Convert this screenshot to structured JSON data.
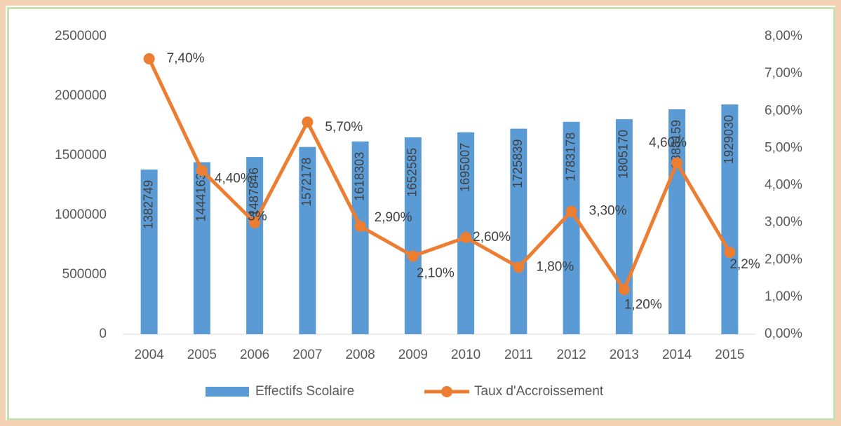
{
  "chart_data": {
    "type": "bar_line",
    "categories": [
      "2004",
      "2005",
      "2006",
      "2007",
      "2008",
      "2009",
      "2010",
      "2011",
      "2012",
      "2013",
      "2014",
      "2015"
    ],
    "series": [
      {
        "name": "Effectifs Scolaire",
        "type": "bar",
        "color": "#5b9bd5",
        "values": [
          1382749,
          1444163,
          1487846,
          1572178,
          1618303,
          1652585,
          1695007,
          1725839,
          1783178,
          1805170,
          1888159,
          1929030
        ]
      },
      {
        "name": "Taux d'Accroissement",
        "type": "line",
        "axis": "y2",
        "color": "#ed7d31",
        "values": [
          7.4,
          4.4,
          3,
          5.7,
          2.9,
          2.1,
          2.6,
          1.8,
          3.3,
          1.2,
          4.6,
          2.2
        ],
        "value_labels": [
          "7,40%",
          "4,40%",
          "3%",
          "5,70%",
          "2,90%",
          "2,10%",
          "2,60%",
          "1,80%",
          "3,30%",
          "1,20%",
          "4,60%",
          "2,2%"
        ]
      }
    ],
    "ylim": [
      0,
      2500000
    ],
    "yticks": [
      0,
      500000,
      1000000,
      1500000,
      2000000,
      2500000
    ],
    "y2lim": [
      0,
      8
    ],
    "y2ticks": [
      {
        "value": 0,
        "label": "0,00%"
      },
      {
        "value": 1,
        "label": "1,00%"
      },
      {
        "value": 2,
        "label": "2,00%"
      },
      {
        "value": 3,
        "label": "3,00%"
      },
      {
        "value": 4,
        "label": "4,00%"
      },
      {
        "value": 5,
        "label": "5,00%"
      },
      {
        "value": 6,
        "label": "6,00%"
      },
      {
        "value": 7,
        "label": "7,00%"
      },
      {
        "value": 8,
        "label": "8,00%"
      }
    ],
    "legend": "bottom",
    "grid": false
  }
}
